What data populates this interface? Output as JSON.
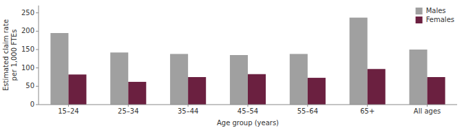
{
  "chart_data": {
    "type": "bar",
    "categories": [
      "15–24",
      "25–34",
      "35–44",
      "45–54",
      "55–64",
      "65+",
      "All ages"
    ],
    "series": [
      {
        "name": "Males",
        "color": "#a0a0a0",
        "values": [
          195,
          142,
          138,
          135,
          138,
          237,
          150
        ]
      },
      {
        "name": "Females",
        "color": "#6b2040",
        "values": [
          82,
          62,
          75,
          83,
          73,
          97,
          75
        ]
      }
    ],
    "xlabel": "Age group (years)",
    "ylabel": "Estimated claim rate\nper 1,000 FTEs",
    "ylim": [
      0,
      270
    ],
    "yticks": [
      0,
      50,
      100,
      150,
      200,
      250
    ],
    "grid": false,
    "legend": "upper right"
  }
}
